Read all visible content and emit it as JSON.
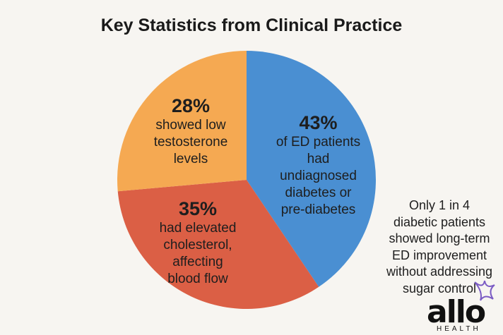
{
  "chart_data": {
    "type": "pie",
    "title": "Key Statistics from Clinical Practice",
    "slices": [
      {
        "value": 43,
        "label": "43%",
        "description": "of ED patients\nhad undiagnosed\ndiabetes or\npre-diabetes",
        "color": "#4a8fd2"
      },
      {
        "value": 35,
        "label": "35%",
        "description": "had elevated\ncholesterol,\naffecting\nblood flow",
        "color": "#db5f45"
      },
      {
        "value": 28,
        "label": "28%",
        "description": "showed low\ntestosterone\nlevels",
        "color": "#f5a952"
      }
    ],
    "start": "12 o'clock, clockwise",
    "annotation": "Only 1 in 4\ndiabetic patients\nshowed long-term\nED improvement\nwithout addressing\nsugar control"
  },
  "logo": {
    "text": "allo",
    "subtext": "HEALTH",
    "accent_color": "#7b5cc4"
  }
}
